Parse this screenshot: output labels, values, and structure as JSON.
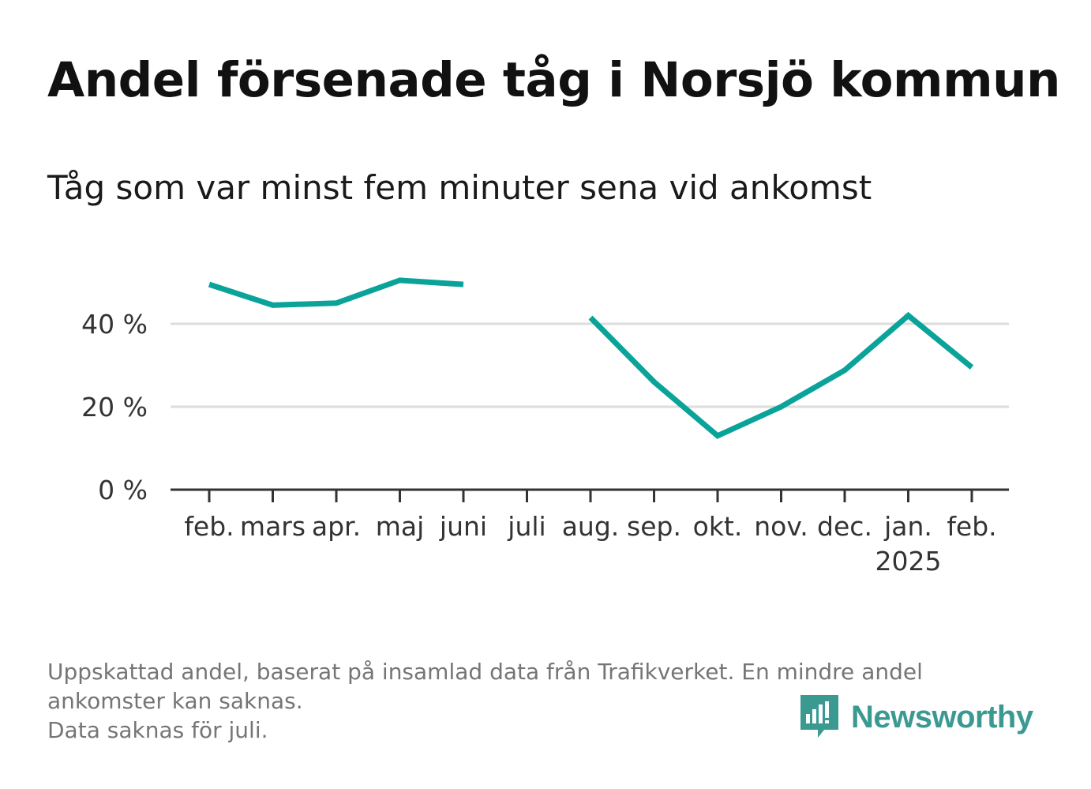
{
  "chart_data": {
    "type": "line",
    "title": "Andel försenade tåg i Norsjö kommun",
    "subtitle": "Tåg som var minst fem minuter sena vid ankomst",
    "xlabel": "",
    "ylabel": "",
    "categories": [
      "feb.",
      "mars",
      "apr.",
      "maj",
      "juni",
      "juli",
      "aug.",
      "sep.",
      "okt.",
      "nov.",
      "dec.",
      "jan.",
      "feb."
    ],
    "category_sublabels": [
      "",
      "",
      "",
      "",
      "",
      "",
      "",
      "",
      "",
      "",
      "",
      "2025",
      ""
    ],
    "series": [
      {
        "name": "Andel försenade tåg",
        "color": "#0aa39a",
        "values": [
          49.5,
          44.5,
          45,
          50.5,
          49.5,
          null,
          41.5,
          26,
          13,
          20,
          28.8,
          42,
          29.5
        ]
      }
    ],
    "ylim": [
      0,
      50
    ],
    "yticks": [
      0,
      20,
      40
    ],
    "ytick_labels": [
      "0 %",
      "20 %",
      "40 %"
    ],
    "grid": true,
    "legend": "none"
  },
  "footnote": {
    "line1": "Uppskattad andel, baserat på insamlad data från Trafikverket. En mindre andel",
    "line2": "ankomster kan saknas.",
    "line3": "Data saknas för juli."
  },
  "brand": {
    "name": "Newsworthy",
    "color": "#3a9a92"
  }
}
